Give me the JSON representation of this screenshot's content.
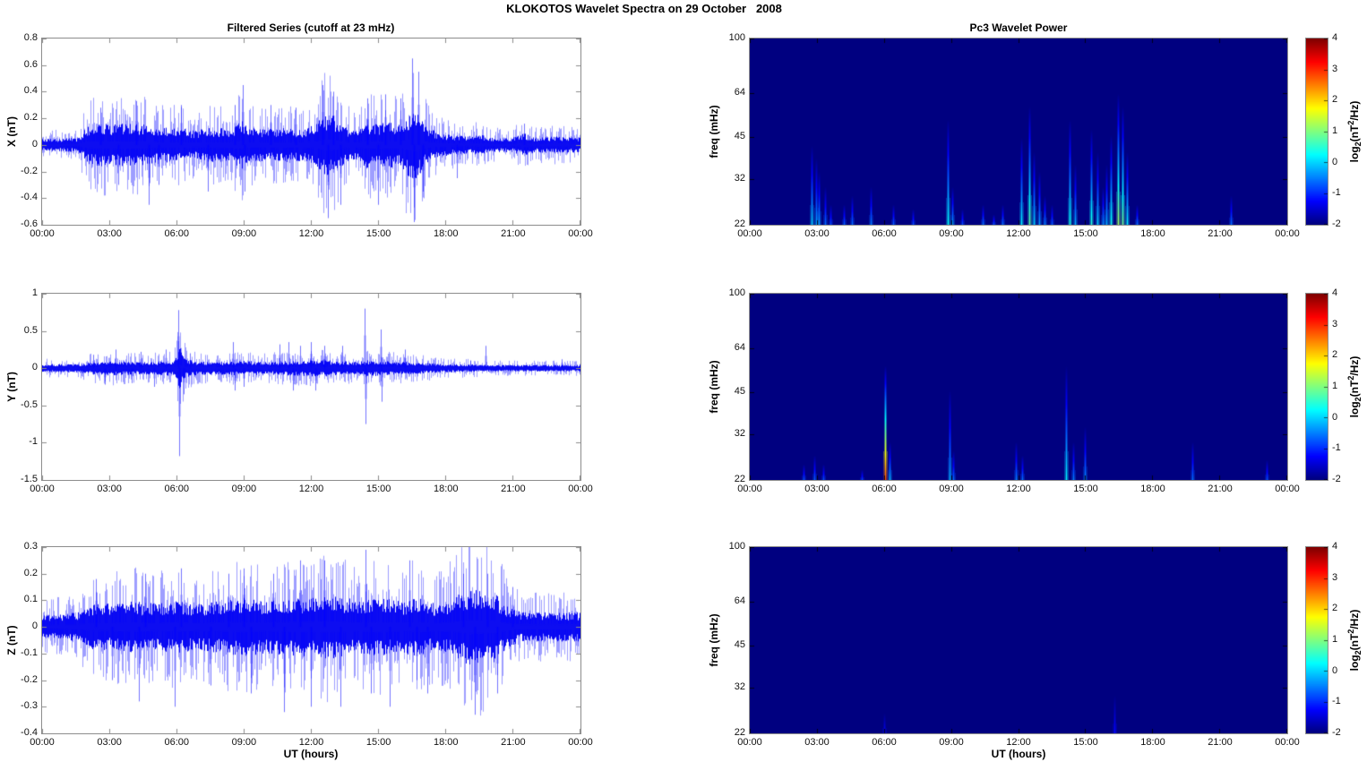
{
  "figure_title": "KLOKOTOS Wavelet Spectra on 29 October   2008",
  "panels": {
    "left_title": "Filtered Series (cutoff at 23 mHz)",
    "right_title": "Pc3 Wavelet Power",
    "xlabel": "UT (hours)"
  },
  "x_tick_labels": [
    "00:00",
    "03:00",
    "06:00",
    "09:00",
    "12:00",
    "15:00",
    "18:00",
    "21:00",
    "00:00"
  ],
  "colorbar": {
    "range": [
      -2,
      4
    ],
    "tick_labels": [
      "4",
      "3",
      "2",
      "1",
      "0",
      "-1",
      "-2"
    ],
    "label_parts": {
      "fn": "log",
      "sub": "2",
      "open": "(nT",
      "sup": "2",
      "close": "/Hz)"
    }
  },
  "chart_data": [
    {
      "id": "ts_x",
      "type": "line",
      "ylabel": "X (nT)",
      "ylim": [
        -0.6,
        0.8
      ],
      "ytick_values": [
        0.8,
        0.6,
        0.4,
        0.2,
        0,
        -0.2,
        -0.4,
        -0.6
      ],
      "ytick_labels": [
        "0.8",
        "0.6",
        "0.4",
        "0.2",
        "0",
        "-0.2",
        "-0.4",
        "-0.6"
      ],
      "x_range_hours": [
        0,
        24
      ],
      "x_tick_hours": [
        0,
        3,
        6,
        9,
        12,
        15,
        18,
        21,
        24
      ],
      "line_color": "#0000FF",
      "noise_envelope": [
        [
          0,
          0.04
        ],
        [
          1.6,
          0.05
        ],
        [
          2.0,
          0.13
        ],
        [
          2.6,
          0.15
        ],
        [
          3.2,
          0.14
        ],
        [
          4.0,
          0.15
        ],
        [
          4.6,
          0.14
        ],
        [
          5.2,
          0.12
        ],
        [
          6.0,
          0.12
        ],
        [
          6.8,
          0.1
        ],
        [
          7.6,
          0.12
        ],
        [
          8.4,
          0.12
        ],
        [
          8.9,
          0.17
        ],
        [
          9.2,
          0.12
        ],
        [
          10.0,
          0.11
        ],
        [
          10.8,
          0.12
        ],
        [
          11.6,
          0.11
        ],
        [
          12.2,
          0.14
        ],
        [
          12.6,
          0.21
        ],
        [
          13.0,
          0.2
        ],
        [
          13.4,
          0.14
        ],
        [
          14.0,
          0.1
        ],
        [
          14.5,
          0.16
        ],
        [
          15.0,
          0.14
        ],
        [
          15.4,
          0.16
        ],
        [
          16.0,
          0.15
        ],
        [
          16.4,
          0.23
        ],
        [
          16.7,
          0.24
        ],
        [
          17.1,
          0.14
        ],
        [
          17.6,
          0.09
        ],
        [
          18.2,
          0.07
        ],
        [
          19.0,
          0.06
        ],
        [
          19.6,
          0.07
        ],
        [
          20.2,
          0.05
        ],
        [
          21.0,
          0.05
        ],
        [
          21.5,
          0.08
        ],
        [
          22.0,
          0.05
        ],
        [
          23.0,
          0.06
        ],
        [
          24,
          0.05
        ]
      ],
      "spikes": [
        [
          2.6,
          0.28
        ],
        [
          3.4,
          -0.3
        ],
        [
          4.2,
          0.33
        ],
        [
          4.75,
          -0.45
        ],
        [
          5.2,
          -0.3
        ],
        [
          6.2,
          0.3
        ],
        [
          7.4,
          -0.35
        ],
        [
          8.6,
          0.3
        ],
        [
          8.95,
          0.45
        ],
        [
          9.05,
          -0.35
        ],
        [
          10.2,
          0.3
        ],
        [
          11.3,
          0.28
        ],
        [
          12.5,
          0.45
        ],
        [
          12.75,
          -0.55
        ],
        [
          13.0,
          0.4
        ],
        [
          13.3,
          -0.45
        ],
        [
          14.5,
          0.35
        ],
        [
          15.0,
          -0.45
        ],
        [
          15.3,
          0.38
        ],
        [
          16.0,
          0.35
        ],
        [
          16.5,
          0.65
        ],
        [
          16.6,
          -0.58
        ],
        [
          16.8,
          0.55
        ],
        [
          17.0,
          -0.35
        ],
        [
          18.5,
          -0.25
        ],
        [
          21.5,
          0.16
        ]
      ]
    },
    {
      "id": "spec_x",
      "type": "heatmap",
      "ylabel": "freq (mHz)",
      "ylim": [
        22,
        100
      ],
      "yscale": "log",
      "ytick_values": [
        100,
        64,
        45,
        32,
        22
      ],
      "ytick_labels": [
        "100",
        "64",
        "45",
        "32",
        "22"
      ],
      "x_range_hours": [
        0,
        24
      ],
      "x_tick_hours": [
        0,
        3,
        6,
        9,
        12,
        15,
        18,
        21,
        24
      ],
      "clim": [
        -2,
        4
      ],
      "colormap": "jet",
      "background_value": -2,
      "streaks": [
        [
          2.75,
          42,
          0
        ],
        [
          2.95,
          38,
          -0.3
        ],
        [
          3.1,
          34,
          -0.3
        ],
        [
          3.35,
          30,
          -0.6
        ],
        [
          3.6,
          26,
          -0.8
        ],
        [
          4.2,
          26,
          -0.7
        ],
        [
          4.55,
          28,
          -0.6
        ],
        [
          5.4,
          30,
          -0.5
        ],
        [
          6.4,
          26,
          -0.7
        ],
        [
          7.3,
          25,
          -0.8
        ],
        [
          8.85,
          52,
          0.3
        ],
        [
          9.05,
          30,
          -0.3
        ],
        [
          9.5,
          25,
          -0.8
        ],
        [
          10.4,
          26,
          -0.6
        ],
        [
          10.9,
          24,
          -0.8
        ],
        [
          11.3,
          26,
          -0.6
        ],
        [
          12.15,
          45,
          0.2
        ],
        [
          12.5,
          58,
          0.8
        ],
        [
          12.7,
          40,
          0
        ],
        [
          12.95,
          34,
          -0.3
        ],
        [
          13.2,
          28,
          -0.5
        ],
        [
          13.5,
          26,
          -0.7
        ],
        [
          14.3,
          52,
          0.4
        ],
        [
          14.55,
          36,
          -0.2
        ],
        [
          15.25,
          48,
          0.5
        ],
        [
          15.55,
          40,
          0
        ],
        [
          15.8,
          30,
          -0.4
        ],
        [
          15.95,
          36,
          -0.2
        ],
        [
          16.15,
          46,
          0.4
        ],
        [
          16.45,
          64,
          1.2
        ],
        [
          16.65,
          58,
          0.9
        ],
        [
          16.85,
          40,
          0.2
        ],
        [
          17.3,
          26,
          -0.6
        ],
        [
          21.5,
          28,
          -0.6
        ]
      ]
    },
    {
      "id": "ts_y",
      "type": "line",
      "ylabel": "Y (nT)",
      "ylim": [
        -1.5,
        1
      ],
      "ytick_values": [
        1,
        0.5,
        0,
        -0.5,
        -1,
        -1.5
      ],
      "ytick_labels": [
        "1",
        "0.5",
        "0",
        "-0.5",
        "-1",
        "-1.5"
      ],
      "x_range_hours": [
        0,
        24
      ],
      "x_tick_hours": [
        0,
        3,
        6,
        9,
        12,
        15,
        18,
        21,
        24
      ],
      "line_color": "#0000FF",
      "noise_envelope": [
        [
          0,
          0.05
        ],
        [
          1.6,
          0.05
        ],
        [
          2.2,
          0.08
        ],
        [
          3.0,
          0.09
        ],
        [
          4.0,
          0.08
        ],
        [
          5.0,
          0.08
        ],
        [
          5.9,
          0.1
        ],
        [
          6.1,
          0.28
        ],
        [
          6.4,
          0.11
        ],
        [
          7.0,
          0.08
        ],
        [
          8.0,
          0.08
        ],
        [
          9.0,
          0.09
        ],
        [
          10.0,
          0.08
        ],
        [
          11.0,
          0.09
        ],
        [
          12.0,
          0.1
        ],
        [
          12.6,
          0.1
        ],
        [
          13.2,
          0.09
        ],
        [
          14.0,
          0.08
        ],
        [
          14.6,
          0.1
        ],
        [
          15.2,
          0.09
        ],
        [
          16.0,
          0.08
        ],
        [
          17.0,
          0.07
        ],
        [
          18.0,
          0.05
        ],
        [
          19.0,
          0.05
        ],
        [
          20.0,
          0.04
        ],
        [
          21.0,
          0.04
        ],
        [
          22.0,
          0.04
        ],
        [
          23.0,
          0.04
        ],
        [
          24,
          0.04
        ]
      ],
      "spikes": [
        [
          2.3,
          0.18
        ],
        [
          2.8,
          -0.22
        ],
        [
          3.3,
          0.25
        ],
        [
          4.0,
          -0.2
        ],
        [
          4.4,
          0.22
        ],
        [
          5.0,
          -0.25
        ],
        [
          5.5,
          0.25
        ],
        [
          6.08,
          0.78
        ],
        [
          6.12,
          -1.18
        ],
        [
          6.3,
          -0.35
        ],
        [
          6.6,
          0.2
        ],
        [
          8.5,
          0.35
        ],
        [
          8.6,
          -0.3
        ],
        [
          9.0,
          -0.25
        ],
        [
          10.6,
          0.32
        ],
        [
          11.0,
          0.35
        ],
        [
          11.2,
          -0.3
        ],
        [
          11.5,
          0.3
        ],
        [
          12.0,
          0.35
        ],
        [
          12.2,
          -0.3
        ],
        [
          12.6,
          0.3
        ],
        [
          13.4,
          0.3
        ],
        [
          14.4,
          0.8
        ],
        [
          14.43,
          -0.75
        ],
        [
          15.1,
          0.52
        ],
        [
          15.15,
          -0.45
        ],
        [
          16.2,
          0.25
        ],
        [
          19.1,
          0.1
        ],
        [
          19.8,
          0.3
        ],
        [
          23.2,
          0.12
        ]
      ]
    },
    {
      "id": "spec_y",
      "type": "heatmap",
      "ylabel": "freq (mHz)",
      "ylim": [
        22,
        100
      ],
      "yscale": "log",
      "ytick_values": [
        100,
        64,
        45,
        32,
        22
      ],
      "ytick_labels": [
        "100",
        "64",
        "45",
        "32",
        "22"
      ],
      "x_range_hours": [
        0,
        24
      ],
      "x_tick_hours": [
        0,
        3,
        6,
        9,
        12,
        15,
        18,
        21,
        24
      ],
      "clim": [
        -2,
        4
      ],
      "colormap": "jet",
      "background_value": -2,
      "streaks": [
        [
          2.4,
          25,
          -0.8
        ],
        [
          2.9,
          27,
          -0.7
        ],
        [
          3.3,
          25,
          -0.8
        ],
        [
          5.0,
          24,
          -0.9
        ],
        [
          6.05,
          56,
          2.8
        ],
        [
          6.25,
          30,
          -0.2
        ],
        [
          8.95,
          46,
          -0.2
        ],
        [
          9.1,
          28,
          -0.6
        ],
        [
          11.9,
          30,
          -0.5
        ],
        [
          12.2,
          27,
          -0.6
        ],
        [
          14.15,
          56,
          0.2
        ],
        [
          14.45,
          30,
          -0.5
        ],
        [
          15.0,
          34,
          -0.4
        ],
        [
          19.8,
          30,
          -0.6
        ],
        [
          23.1,
          26,
          -0.8
        ]
      ]
    },
    {
      "id": "ts_z",
      "type": "line",
      "ylabel": "Z (nT)",
      "ylim": [
        -0.4,
        0.3
      ],
      "ytick_values": [
        0.3,
        0.2,
        0.1,
        0,
        -0.1,
        -0.2,
        -0.3,
        -0.4
      ],
      "ytick_labels": [
        "0.3",
        "0.2",
        "0.1",
        "0",
        "-0.1",
        "-0.2",
        "-0.3",
        "-0.4"
      ],
      "x_range_hours": [
        0,
        24
      ],
      "x_tick_hours": [
        0,
        3,
        6,
        9,
        12,
        15,
        18,
        21,
        24
      ],
      "line_color": "#0000FF",
      "noise_envelope": [
        [
          0,
          0.04
        ],
        [
          1.6,
          0.05
        ],
        [
          2.2,
          0.08
        ],
        [
          3.0,
          0.08
        ],
        [
          4.0,
          0.09
        ],
        [
          5.0,
          0.08
        ],
        [
          6.0,
          0.09
        ],
        [
          7.0,
          0.08
        ],
        [
          8.0,
          0.09
        ],
        [
          9.0,
          0.1
        ],
        [
          10.0,
          0.09
        ],
        [
          11.0,
          0.1
        ],
        [
          12.0,
          0.1
        ],
        [
          12.8,
          0.11
        ],
        [
          13.6,
          0.1
        ],
        [
          14.2,
          0.09
        ],
        [
          15.0,
          0.1
        ],
        [
          16.0,
          0.09
        ],
        [
          16.8,
          0.1
        ],
        [
          17.6,
          0.08
        ],
        [
          18.4,
          0.1
        ],
        [
          19.0,
          0.13
        ],
        [
          19.6,
          0.13
        ],
        [
          20.2,
          0.12
        ],
        [
          20.8,
          0.07
        ],
        [
          21.4,
          0.05
        ],
        [
          22.0,
          0.05
        ],
        [
          23.0,
          0.05
        ],
        [
          24,
          0.05
        ]
      ],
      "spikes": [
        [
          2.4,
          0.18
        ],
        [
          3.1,
          -0.2
        ],
        [
          4.3,
          -0.28
        ],
        [
          4.6,
          0.2
        ],
        [
          5.9,
          -0.3
        ],
        [
          6.2,
          0.22
        ],
        [
          7.5,
          -0.22
        ],
        [
          8.3,
          0.2
        ],
        [
          9.0,
          0.22
        ],
        [
          9.3,
          -0.25
        ],
        [
          10.3,
          0.2
        ],
        [
          10.8,
          -0.32
        ],
        [
          11.5,
          0.25
        ],
        [
          12.0,
          -0.3
        ],
        [
          12.6,
          0.25
        ],
        [
          13.3,
          -0.3
        ],
        [
          14.45,
          0.29
        ],
        [
          14.7,
          -0.25
        ],
        [
          15.5,
          -0.3
        ],
        [
          16.4,
          0.25
        ],
        [
          16.7,
          -0.2
        ],
        [
          17.2,
          -0.25
        ],
        [
          18.8,
          0.2
        ],
        [
          19.3,
          -0.33
        ],
        [
          19.9,
          0.2
        ],
        [
          20.3,
          -0.25
        ],
        [
          21.0,
          0.15
        ]
      ]
    },
    {
      "id": "spec_z",
      "type": "heatmap",
      "ylabel": "freq (mHz)",
      "ylim": [
        22,
        100
      ],
      "yscale": "log",
      "ytick_values": [
        100,
        64,
        45,
        32,
        22
      ],
      "ytick_labels": [
        "100",
        "64",
        "45",
        "32",
        "22"
      ],
      "x_range_hours": [
        0,
        24
      ],
      "x_tick_hours": [
        0,
        3,
        6,
        9,
        12,
        15,
        18,
        21,
        24
      ],
      "clim": [
        -2,
        4
      ],
      "colormap": "jet",
      "background_value": -2,
      "streaks": [
        [
          6.0,
          26,
          -1.3
        ],
        [
          16.3,
          30,
          -1.2
        ]
      ]
    }
  ]
}
